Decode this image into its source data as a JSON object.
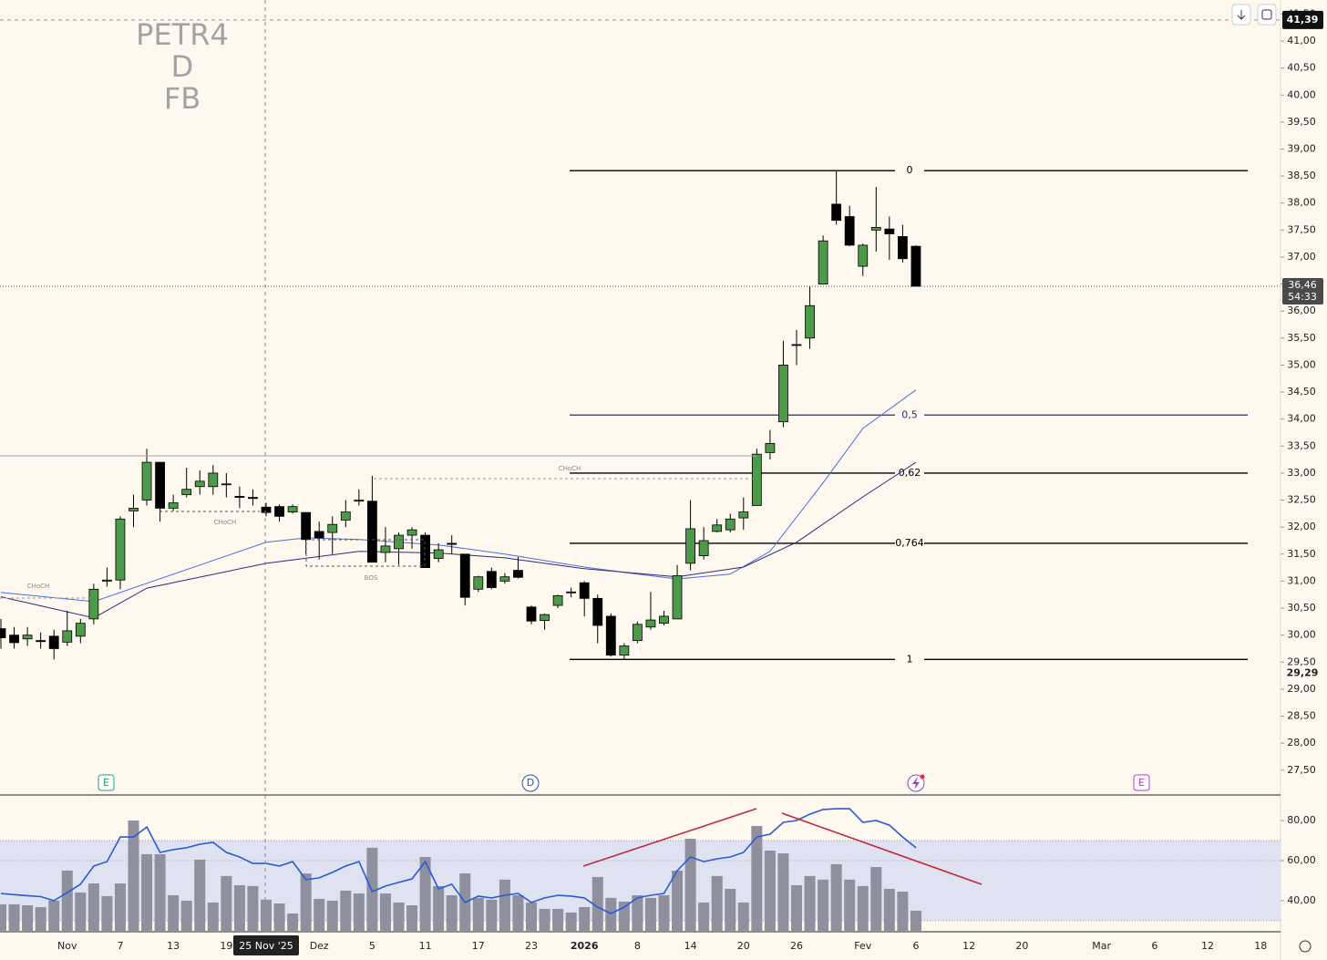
{
  "chart_data": [
    {
      "type": "candlestick",
      "watermark": [
        "PETR4",
        "D",
        "FB"
      ],
      "categories": [
        null,
        null,
        null,
        null,
        null,
        "Nov",
        null,
        null,
        null,
        "7",
        null,
        null,
        null,
        "13",
        null,
        null,
        null,
        "19",
        null,
        null,
        null,
        null,
        null,
        null,
        "Dez",
        null,
        null,
        null,
        "5",
        null,
        null,
        null,
        "11",
        null,
        null,
        null,
        "17",
        null,
        null,
        null,
        "23",
        null,
        null,
        null,
        "2026",
        null,
        null,
        null,
        "8",
        null,
        null,
        null,
        "14",
        null,
        null,
        null,
        "20",
        null,
        null,
        null,
        "26",
        null,
        null,
        null,
        null,
        "Fev",
        null,
        null,
        null,
        "6",
        null,
        null,
        null,
        "12",
        null,
        null,
        null,
        "20",
        null,
        null,
        null,
        null,
        null,
        "Mar",
        null,
        null,
        null,
        "6",
        null,
        null,
        null,
        "12",
        null,
        null,
        null,
        "18"
      ],
      "crosshair": {
        "x": 20,
        "label": "25 Nov '25"
      },
      "open": [
        30.12,
        30.0,
        29.93,
        29.9,
        29.98,
        29.87,
        29.98,
        30.3,
        31.0,
        31.02,
        32.3,
        32.5,
        33.2,
        32.35,
        32.6,
        32.75,
        32.75,
        32.8,
        32.57,
        32.55,
        32.37,
        32.38,
        32.28,
        32.27,
        31.92,
        31.9,
        32.13,
        32.48,
        32.48,
        31.53,
        31.6,
        31.85,
        31.85,
        31.42,
        31.7,
        31.5,
        30.85,
        31.18,
        31.0,
        31.2,
        30.52,
        30.27,
        30.55,
        30.8,
        30.97,
        30.68,
        30.35,
        29.63,
        29.9,
        30.15,
        30.22,
        30.3,
        31.33,
        31.47,
        31.92,
        31.95,
        32.17,
        32.4,
        33.38,
        33.95,
        35.38,
        35.5,
        36.5,
        37.98,
        37.75,
        36.83,
        37.5,
        37.52,
        37.38,
        37.2,
        null,
        null,
        null,
        null,
        null,
        null,
        null,
        null,
        null,
        null,
        null,
        null,
        null,
        null,
        null,
        null,
        null,
        null,
        null,
        null,
        null,
        null,
        null,
        null,
        null,
        null
      ],
      "high": [
        30.3,
        30.15,
        30.15,
        30.05,
        30.1,
        30.45,
        30.3,
        30.95,
        31.25,
        32.2,
        32.6,
        33.45,
        33.2,
        32.6,
        33.1,
        33.05,
        33.15,
        33.0,
        32.75,
        32.7,
        32.45,
        32.42,
        32.42,
        32.28,
        32.1,
        32.2,
        32.5,
        32.7,
        32.95,
        32.0,
        31.9,
        32.0,
        31.9,
        31.7,
        31.85,
        31.5,
        31.1,
        31.25,
        31.15,
        31.45,
        30.55,
        30.4,
        30.75,
        30.88,
        31.0,
        30.75,
        30.4,
        29.85,
        30.25,
        30.8,
        30.45,
        31.3,
        32.5,
        32.0,
        32.15,
        32.25,
        32.55,
        33.45,
        33.8,
        35.45,
        35.65,
        36.45,
        37.4,
        38.6,
        37.95,
        37.25,
        38.3,
        37.75,
        37.6,
        37.22,
        null,
        null,
        null,
        null,
        null,
        null,
        null,
        null,
        null,
        null,
        null,
        null,
        null,
        null,
        null,
        null,
        null,
        null,
        null,
        null,
        null,
        null,
        null,
        null,
        null,
        null
      ],
      "low": [
        29.75,
        29.75,
        29.8,
        29.75,
        29.55,
        29.8,
        29.85,
        30.2,
        30.9,
        30.85,
        32.0,
        32.4,
        32.1,
        32.3,
        32.55,
        32.6,
        32.6,
        32.55,
        32.35,
        32.4,
        32.2,
        32.1,
        32.25,
        31.5,
        31.4,
        31.5,
        32.0,
        32.4,
        31.35,
        31.35,
        31.3,
        31.6,
        31.25,
        31.35,
        31.5,
        30.55,
        30.8,
        30.85,
        30.95,
        31.05,
        30.2,
        30.1,
        30.5,
        30.7,
        30.35,
        29.85,
        29.6,
        29.55,
        29.85,
        30.1,
        30.18,
        30.3,
        31.2,
        31.4,
        31.9,
        31.9,
        31.95,
        32.4,
        33.25,
        33.85,
        35.0,
        35.3,
        36.5,
        37.6,
        37.2,
        36.65,
        37.1,
        36.95,
        36.9,
        36.46,
        null,
        null,
        null,
        null,
        null,
        null,
        null,
        null,
        null,
        null,
        null,
        null,
        null,
        null,
        null,
        null,
        null,
        null,
        null,
        null,
        null,
        null,
        null,
        null,
        null,
        null
      ],
      "close": [
        29.95,
        29.86,
        30.0,
        29.88,
        29.75,
        30.08,
        30.22,
        30.85,
        31.02,
        32.15,
        32.35,
        33.2,
        32.35,
        32.45,
        32.7,
        32.85,
        33.0,
        32.8,
        32.55,
        32.53,
        32.27,
        32.2,
        32.38,
        31.77,
        31.8,
        32.05,
        32.28,
        32.5,
        31.35,
        31.65,
        31.85,
        31.95,
        31.25,
        31.58,
        31.68,
        30.7,
        31.08,
        30.88,
        31.08,
        31.07,
        30.26,
        30.38,
        30.73,
        30.79,
        30.68,
        30.18,
        29.63,
        29.8,
        30.2,
        30.28,
        30.35,
        31.1,
        31.97,
        31.75,
        32.04,
        32.15,
        32.28,
        33.35,
        33.55,
        35.0,
        35.37,
        36.1,
        37.3,
        37.68,
        37.22,
        37.22,
        37.55,
        37.43,
        36.97,
        36.46,
        null,
        null,
        null,
        null,
        null,
        null,
        null,
        null,
        null,
        null,
        null,
        null,
        null,
        null,
        null,
        null,
        null,
        null,
        null,
        null,
        null,
        null,
        null,
        null,
        null,
        null
      ],
      "up_color": "#4c9a4a",
      "down_color": "#000000",
      "moving_averages": [
        {
          "color": "#4a6fe0",
          "x": [
            0,
            7,
            11,
            20,
            23,
            27,
            33,
            38,
            44,
            48,
            51,
            55,
            58,
            62,
            65,
            69
          ],
          "values": [
            30.79,
            30.62,
            30.96,
            31.72,
            31.8,
            31.77,
            31.67,
            31.5,
            31.26,
            31.13,
            31.04,
            31.13,
            31.55,
            32.82,
            33.83,
            34.54
          ]
        },
        {
          "color": "#2e2a7a",
          "x": [
            0,
            7,
            11,
            20,
            27,
            33,
            38,
            44,
            51,
            56,
            60,
            65,
            69
          ],
          "values": [
            30.71,
            30.32,
            30.87,
            31.33,
            31.55,
            31.52,
            31.43,
            31.23,
            31.08,
            31.26,
            31.72,
            32.56,
            33.2
          ]
        }
      ],
      "fib_levels": [
        {
          "value": 38.6,
          "label": "0",
          "color": "#000000"
        },
        {
          "value": 34.075,
          "label": "0,5",
          "color": "#2e2a7a"
        },
        {
          "value": 33.0,
          "label": "0,62",
          "color": "#000000"
        },
        {
          "value": 31.7,
          "label": "0,764",
          "color": "#000000"
        },
        {
          "value": 29.55,
          "label": "1",
          "color": "#000000"
        }
      ],
      "annotations": [
        "CHoCH",
        "CHoCH",
        "CHoCH",
        "BOS"
      ],
      "events": [
        "E",
        "D",
        "E"
      ],
      "ylim": [
        27.04,
        41.76
      ],
      "yticks": [
        {
          "value": 27.5,
          "label": "27,50"
        },
        {
          "value": 28,
          "label": "28,00"
        },
        {
          "value": 28.5,
          "label": "28,50"
        },
        {
          "value": 29,
          "label": "29,00"
        },
        {
          "value": 29.5,
          "label": "29,50"
        },
        {
          "value": 30,
          "label": "30,00"
        },
        {
          "value": 30.5,
          "label": "30,50"
        },
        {
          "value": 31,
          "label": "31,00"
        },
        {
          "value": 31.5,
          "label": "31,50"
        },
        {
          "value": 32,
          "label": "32,00"
        },
        {
          "value": 32.5,
          "label": "32,50"
        },
        {
          "value": 33,
          "label": "33,00"
        },
        {
          "value": 33.5,
          "label": "33,50"
        },
        {
          "value": 34,
          "label": "34,00"
        },
        {
          "value": 34.5,
          "label": "34,50"
        },
        {
          "value": 35,
          "label": "35,00"
        },
        {
          "value": 35.5,
          "label": "35,50"
        },
        {
          "value": 36,
          "label": "36,00"
        },
        {
          "value": 36.5,
          "label": "36,50"
        },
        {
          "value": 37,
          "label": "37,00"
        },
        {
          "value": 37.5,
          "label": "37,50"
        },
        {
          "value": 38,
          "label": "38,00"
        },
        {
          "value": 38.5,
          "label": "38,50"
        },
        {
          "value": 39,
          "label": "39,00"
        },
        {
          "value": 39.5,
          "label": "39,50"
        },
        {
          "value": 40,
          "label": "40,00"
        },
        {
          "value": 40.5,
          "label": "40,50"
        },
        {
          "value": 41,
          "label": "41,00"
        },
        {
          "value": 41.5,
          "label": "41,50"
        }
      ],
      "last_price": {
        "value": 36.46,
        "label": "36,46",
        "countdown": "54:33"
      },
      "high_marker": {
        "value": 41.39,
        "label": "41,39"
      },
      "low_marker": {
        "value": 29.29,
        "label": "29,29"
      }
    },
    {
      "type": "volume_oscillator",
      "volume": [
        38.2,
        38.2,
        37.7,
        36.8,
        40,
        55,
        44.1,
        48.6,
        42.3,
        48.6,
        80,
        63.2,
        63.2,
        42.7,
        40,
        60.5,
        39.1,
        52.3,
        47.7,
        47.3,
        40.5,
        38.6,
        33.6,
        53.6,
        40.9,
        40,
        45,
        43.6,
        66.4,
        43.6,
        39.1,
        37.7,
        61.8,
        47.3,
        42.7,
        53.6,
        41.4,
        40.5,
        50.5,
        42.7,
        39.1,
        35.9,
        35.9,
        34.1,
        36.8,
        51.8,
        41.4,
        39.5,
        42.7,
        41.4,
        42.7,
        55,
        70.9,
        39.1,
        52.3,
        45.9,
        39.1,
        77.3,
        65,
        63.6,
        47.7,
        52.3,
        50.5,
        58.2,
        50.5,
        47.3,
        56.8,
        45.9,
        44.5,
        35,
        null,
        null,
        null,
        null,
        null,
        null,
        null,
        null,
        null,
        null,
        null,
        null,
        null,
        null,
        null,
        null,
        null,
        null,
        null,
        null,
        null,
        null,
        null,
        null,
        null,
        null
      ],
      "volume_color": "#8f8f9d",
      "oscillator": [
        43.6,
        43,
        42.5,
        42,
        40,
        44,
        48.2,
        57.3,
        59.5,
        71.8,
        71.8,
        76.8,
        64.1,
        65.5,
        66.4,
        68.2,
        69.1,
        64.1,
        61.8,
        58.6,
        58.6,
        57.3,
        59.5,
        50.5,
        51.4,
        54.1,
        57.3,
        59.5,
        44.5,
        47.3,
        49.1,
        50.9,
        59.5,
        45.9,
        48.2,
        39.1,
        42.3,
        41.4,
        42.7,
        43.6,
        39.1,
        41.4,
        42.7,
        42.3,
        41.4,
        36.8,
        33.6,
        36.8,
        41.4,
        42.7,
        43.6,
        55,
        61.8,
        59.5,
        60.9,
        61.8,
        64.1,
        71.8,
        73.2,
        79.1,
        80,
        83.2,
        85.5,
        85.9,
        85.9,
        79.1,
        80,
        77.7,
        71.8,
        66.4,
        null,
        null,
        null,
        null,
        null,
        null,
        null,
        null,
        null,
        null,
        null,
        null,
        null,
        null,
        null,
        null,
        null,
        null,
        null,
        null,
        null,
        null,
        null,
        null,
        null,
        null
      ],
      "oscillator_color": "#2a5bd7",
      "band": [
        30,
        70
      ],
      "ylim": [
        24.5,
        92.3
      ],
      "yticks": [
        {
          "value": 40,
          "label": "40,00"
        },
        {
          "value": 60,
          "label": "60,00"
        },
        {
          "value": 80,
          "label": "80,00"
        }
      ]
    }
  ]
}
